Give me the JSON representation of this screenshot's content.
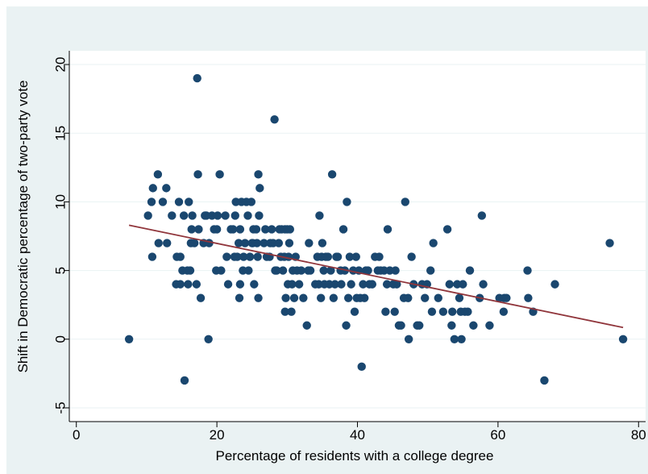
{
  "chart_data": {
    "type": "scatter",
    "title": "",
    "xlabel": "Percentage of residents with a college degree",
    "ylabel": "Shift in Democratic percentage of two-party vote",
    "xlim": [
      -1,
      81
    ],
    "ylim": [
      -6,
      21
    ],
    "x_ticks": [
      0,
      20,
      40,
      60,
      80
    ],
    "y_ticks": [
      -5,
      0,
      5,
      10,
      15,
      20
    ],
    "x_tick_labels": [
      "0",
      "20",
      "40",
      "60",
      "80"
    ],
    "y_tick_labels": [
      "-5",
      "0",
      "5",
      "10",
      "15",
      "20"
    ],
    "grid": true,
    "legend": "none",
    "colors": {
      "points": "#1a476f",
      "fit_line": "#90353b",
      "frame": "#eaf2f3"
    },
    "series": [
      {
        "type": "scatter",
        "points": [
          [
            7.5,
            0
          ],
          [
            10.2,
            9
          ],
          [
            10.7,
            10
          ],
          [
            10.8,
            6
          ],
          [
            10.9,
            11
          ],
          [
            11.6,
            12
          ],
          [
            11.7,
            7
          ],
          [
            12.3,
            10
          ],
          [
            12.8,
            11
          ],
          [
            12.9,
            7
          ],
          [
            13.6,
            9
          ],
          [
            14.2,
            4
          ],
          [
            14.3,
            6
          ],
          [
            14.6,
            10
          ],
          [
            14.8,
            4
          ],
          [
            14.8,
            6
          ],
          [
            15.1,
            5
          ],
          [
            15.3,
            9
          ],
          [
            15.4,
            -3
          ],
          [
            15.8,
            5
          ],
          [
            15.9,
            4
          ],
          [
            16.0,
            10
          ],
          [
            16.2,
            5
          ],
          [
            16.3,
            7
          ],
          [
            16.4,
            8
          ],
          [
            16.5,
            9
          ],
          [
            16.8,
            7
          ],
          [
            17.1,
            4
          ],
          [
            17.2,
            19
          ],
          [
            17.3,
            12
          ],
          [
            17.4,
            8
          ],
          [
            17.7,
            3
          ],
          [
            18.1,
            7
          ],
          [
            18.3,
            9
          ],
          [
            18.5,
            9
          ],
          [
            18.8,
            0
          ],
          [
            18.9,
            7
          ],
          [
            19.3,
            9
          ],
          [
            19.6,
            8
          ],
          [
            19.9,
            5
          ],
          [
            20.0,
            8
          ],
          [
            20.1,
            9
          ],
          [
            20.4,
            12
          ],
          [
            20.6,
            5
          ],
          [
            21.2,
            9
          ],
          [
            21.4,
            6
          ],
          [
            21.6,
            4
          ],
          [
            22.0,
            8
          ],
          [
            22.3,
            8
          ],
          [
            22.5,
            6
          ],
          [
            22.6,
            9
          ],
          [
            22.7,
            10
          ],
          [
            22.9,
            6
          ],
          [
            23.1,
            7
          ],
          [
            23.2,
            3
          ],
          [
            23.3,
            8
          ],
          [
            23.3,
            4
          ],
          [
            23.5,
            10
          ],
          [
            23.7,
            5
          ],
          [
            23.8,
            6
          ],
          [
            24.0,
            7
          ],
          [
            24.2,
            10
          ],
          [
            24.4,
            9
          ],
          [
            24.5,
            5
          ],
          [
            24.7,
            6
          ],
          [
            24.9,
            10
          ],
          [
            25.0,
            7
          ],
          [
            25.1,
            7
          ],
          [
            25.2,
            8
          ],
          [
            25.3,
            4
          ],
          [
            25.6,
            8
          ],
          [
            25.7,
            7
          ],
          [
            25.8,
            6
          ],
          [
            25.9,
            12
          ],
          [
            25.9,
            3
          ],
          [
            26.0,
            9
          ],
          [
            26.1,
            11
          ],
          [
            26.7,
            7
          ],
          [
            26.9,
            8
          ],
          [
            27.1,
            6
          ],
          [
            27.5,
            6
          ],
          [
            27.6,
            7
          ],
          [
            27.8,
            8
          ],
          [
            28.0,
            7
          ],
          [
            28.2,
            16
          ],
          [
            28.3,
            5
          ],
          [
            28.5,
            5
          ],
          [
            28.8,
            7
          ],
          [
            28.9,
            8
          ],
          [
            29.1,
            6
          ],
          [
            29.2,
            8
          ],
          [
            29.4,
            5
          ],
          [
            29.6,
            6
          ],
          [
            29.7,
            8
          ],
          [
            29.7,
            2
          ],
          [
            29.8,
            3
          ],
          [
            30.0,
            8
          ],
          [
            30.1,
            4
          ],
          [
            30.2,
            6
          ],
          [
            30.3,
            7
          ],
          [
            30.4,
            8
          ],
          [
            30.6,
            2
          ],
          [
            30.7,
            4
          ],
          [
            30.8,
            5
          ],
          [
            31.0,
            3
          ],
          [
            31.2,
            6
          ],
          [
            31.4,
            5
          ],
          [
            31.7,
            4
          ],
          [
            32.0,
            5
          ],
          [
            32.3,
            3
          ],
          [
            32.8,
            1
          ],
          [
            33.0,
            5
          ],
          [
            33.1,
            7
          ],
          [
            33.3,
            5
          ],
          [
            34.0,
            4
          ],
          [
            34.3,
            6
          ],
          [
            34.5,
            4
          ],
          [
            34.6,
            9
          ],
          [
            34.8,
            3
          ],
          [
            34.9,
            6
          ],
          [
            35.0,
            7
          ],
          [
            35.2,
            5
          ],
          [
            35.3,
            4
          ],
          [
            35.5,
            6
          ],
          [
            35.8,
            6
          ],
          [
            36.0,
            4
          ],
          [
            36.2,
            5
          ],
          [
            36.4,
            12
          ],
          [
            36.6,
            3
          ],
          [
            36.8,
            4
          ],
          [
            37.0,
            6
          ],
          [
            37.2,
            6
          ],
          [
            37.6,
            5
          ],
          [
            37.7,
            4
          ],
          [
            38.0,
            8
          ],
          [
            38.2,
            5
          ],
          [
            38.4,
            1
          ],
          [
            38.5,
            10
          ],
          [
            38.7,
            3
          ],
          [
            38.9,
            6
          ],
          [
            39.1,
            4
          ],
          [
            39.4,
            5
          ],
          [
            39.6,
            2
          ],
          [
            39.8,
            6
          ],
          [
            39.9,
            3
          ],
          [
            40.2,
            5
          ],
          [
            40.4,
            3
          ],
          [
            40.6,
            -2
          ],
          [
            40.8,
            4
          ],
          [
            41.0,
            3
          ],
          [
            41.2,
            5
          ],
          [
            41.5,
            5
          ],
          [
            41.7,
            4
          ],
          [
            42.1,
            4
          ],
          [
            42.5,
            6
          ],
          [
            42.9,
            5
          ],
          [
            43.1,
            6
          ],
          [
            43.3,
            5
          ],
          [
            43.8,
            5
          ],
          [
            44.0,
            2
          ],
          [
            44.2,
            4
          ],
          [
            44.3,
            8
          ],
          [
            44.6,
            5
          ],
          [
            45.1,
            4
          ],
          [
            45.3,
            2
          ],
          [
            45.4,
            5
          ],
          [
            45.6,
            4
          ],
          [
            45.9,
            1
          ],
          [
            46.2,
            1
          ],
          [
            46.6,
            3
          ],
          [
            46.8,
            10
          ],
          [
            47.2,
            3
          ],
          [
            47.3,
            0
          ],
          [
            47.7,
            6
          ],
          [
            48.0,
            4
          ],
          [
            48.5,
            1
          ],
          [
            48.8,
            1
          ],
          [
            49.2,
            4
          ],
          [
            49.6,
            3
          ],
          [
            49.9,
            4
          ],
          [
            50.4,
            5
          ],
          [
            50.6,
            2
          ],
          [
            50.8,
            7
          ],
          [
            51.5,
            3
          ],
          [
            52.2,
            2
          ],
          [
            52.8,
            8
          ],
          [
            53.1,
            4
          ],
          [
            53.4,
            1
          ],
          [
            53.5,
            2
          ],
          [
            53.8,
            0
          ],
          [
            54.2,
            4
          ],
          [
            54.5,
            3
          ],
          [
            54.7,
            2
          ],
          [
            54.8,
            0
          ],
          [
            55.0,
            4
          ],
          [
            55.3,
            2
          ],
          [
            55.7,
            2
          ],
          [
            56.0,
            5
          ],
          [
            56.5,
            1
          ],
          [
            57.4,
            3
          ],
          [
            57.7,
            9
          ],
          [
            57.9,
            4
          ],
          [
            58.8,
            1
          ],
          [
            60.2,
            3
          ],
          [
            60.8,
            2
          ],
          [
            60.9,
            3
          ],
          [
            61.2,
            3
          ],
          [
            64.2,
            5
          ],
          [
            64.3,
            3
          ],
          [
            65.0,
            2
          ],
          [
            66.6,
            -3
          ],
          [
            68.1,
            4
          ],
          [
            75.9,
            7
          ],
          [
            77.8,
            0
          ]
        ]
      },
      {
        "type": "line",
        "points": [
          [
            7.5,
            8.3
          ],
          [
            77.8,
            0.85
          ]
        ]
      }
    ]
  }
}
